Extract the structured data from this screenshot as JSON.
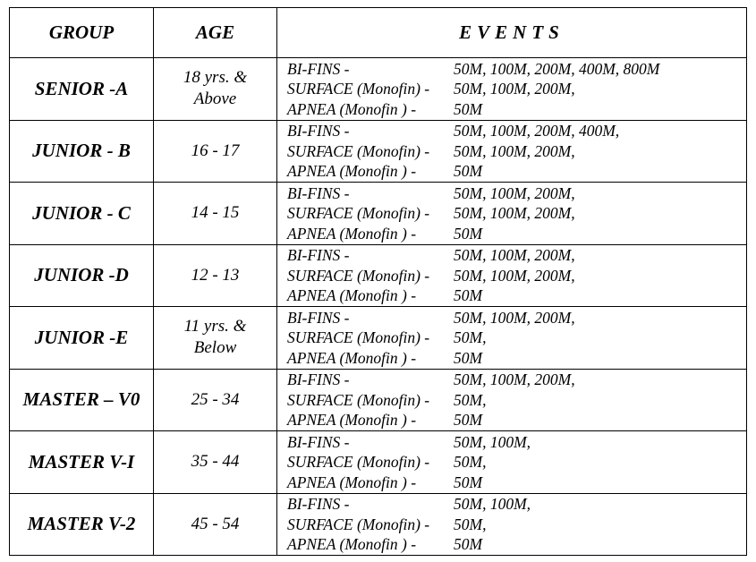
{
  "table": {
    "header": [
      "GROUP",
      "AGE",
      "EVENTS"
    ],
    "rows": [
      {
        "group": "SENIOR -A",
        "age": [
          "18 yrs. &",
          "Above"
        ],
        "events": [
          {
            "name": "BI-FINS -",
            "distances": "50M, 100M, 200M, 400M, 800M"
          },
          {
            "name": "SURFACE (Monofin) -",
            "distances": "50M, 100M, 200M,"
          },
          {
            "name": "APNEA (Monofin ) -",
            "distances": "50M"
          }
        ]
      },
      {
        "group": "JUNIOR - B",
        "age": [
          "16 - 17"
        ],
        "events": [
          {
            "name": "BI-FINS -",
            "distances": "50M, 100M, 200M, 400M,"
          },
          {
            "name": "SURFACE (Monofin) -",
            "distances": "50M, 100M, 200M,"
          },
          {
            "name": "APNEA (Monofin ) -",
            "distances": "50M"
          }
        ]
      },
      {
        "group": "JUNIOR - C",
        "age": [
          "14 - 15"
        ],
        "events": [
          {
            "name": "BI-FINS -",
            "distances": "50M, 100M, 200M,"
          },
          {
            "name": "SURFACE (Monofin) -",
            "distances": "50M, 100M, 200M,"
          },
          {
            "name": "APNEA (Monofin ) -",
            "distances": "50M"
          }
        ]
      },
      {
        "group": "JUNIOR -D",
        "age": [
          "12 - 13"
        ],
        "events": [
          {
            "name": "BI-FINS -",
            "distances": "50M, 100M, 200M,"
          },
          {
            "name": "SURFACE (Monofin) -",
            "distances": "50M, 100M, 200M,"
          },
          {
            "name": "APNEA (Monofin ) -",
            "distances": "50M"
          }
        ]
      },
      {
        "group": "JUNIOR -E",
        "age": [
          "11 yrs. &",
          "Below"
        ],
        "events": [
          {
            "name": "BI-FINS -",
            "distances": "50M, 100M, 200M,"
          },
          {
            "name": "SURFACE (Monofin) -",
            "distances": "50M,"
          },
          {
            "name": "APNEA (Monofin ) -",
            "distances": "50M"
          }
        ]
      },
      {
        "group": "MASTER – V0",
        "age": [
          "25 - 34"
        ],
        "events": [
          {
            "name": "BI-FINS -",
            "distances": "50M, 100M, 200M,"
          },
          {
            "name": "SURFACE (Monofin) -",
            "distances": "50M,"
          },
          {
            "name": "APNEA (Monofin ) -",
            "distances": "50M"
          }
        ]
      },
      {
        "group": "MASTER V-I",
        "age": [
          "35 - 44"
        ],
        "events": [
          {
            "name": "BI-FINS -",
            "distances": "50M, 100M,"
          },
          {
            "name": "SURFACE (Monofin) -",
            "distances": "50M,"
          },
          {
            "name": "APNEA (Monofin ) -",
            "distances": "50M"
          }
        ]
      },
      {
        "group": "MASTER V-2",
        "age": [
          "45 - 54"
        ],
        "events": [
          {
            "name": "BI-FINS -",
            "distances": "50M, 100M,"
          },
          {
            "name": "SURFACE (Monofin) -",
            "distances": "50M,"
          },
          {
            "name": "APNEA (Monofin ) -",
            "distances": "50M"
          }
        ]
      }
    ]
  }
}
